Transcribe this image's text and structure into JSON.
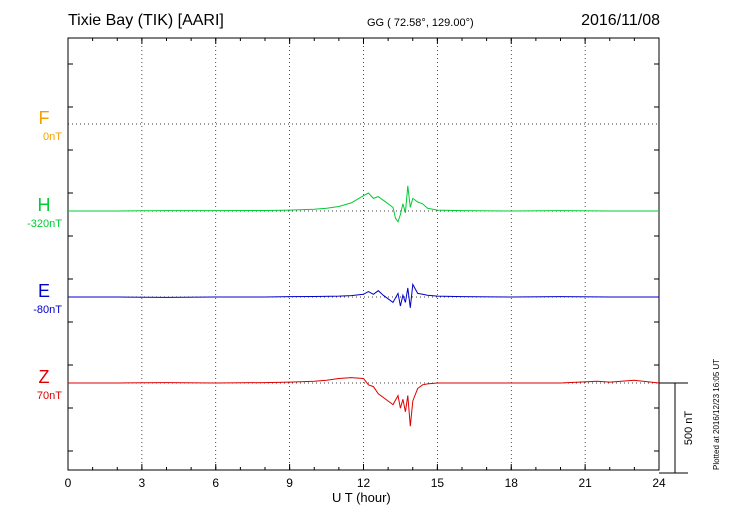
{
  "header": {
    "title": "Tixie Bay (TIK)  [AARI]",
    "coords": "GG ( 72.58°, 129.00°)",
    "date": "2016/11/08"
  },
  "footer": {
    "plotted": "Plotted at 2016/12/23 16:05 UT"
  },
  "colors": {
    "F": "#f5a000",
    "H": "#00cc33",
    "E": "#0000cc",
    "Z": "#dd0000"
  },
  "chart_data": {
    "type": "line",
    "xlabel": "U T (hour)",
    "xlim": [
      0,
      24
    ],
    "xticks": [
      0,
      3,
      6,
      9,
      12,
      15,
      18,
      21,
      24
    ],
    "grid": true,
    "scale_bar": {
      "label": "500 nT",
      "value_nT": 500
    },
    "series": [
      {
        "name": "F",
        "baseline_label": "0nT",
        "baseline_nT": 0,
        "x": [],
        "y": []
      },
      {
        "name": "H",
        "baseline_label": "-320nT",
        "baseline_nT": -320,
        "x": [
          0,
          2,
          4,
          6,
          8,
          9,
          10,
          10.5,
          11,
          11.5,
          12,
          12.2,
          12.4,
          12.6,
          12.8,
          13,
          13.2,
          13.3,
          13.4,
          13.5,
          13.6,
          13.7,
          13.8,
          13.9,
          14,
          14.2,
          14.4,
          14.6,
          15,
          16,
          18,
          20,
          22,
          24
        ],
        "y": [
          0,
          0,
          2,
          2,
          3,
          5,
          10,
          15,
          25,
          45,
          85,
          100,
          70,
          80,
          60,
          40,
          20,
          -40,
          -60,
          -20,
          40,
          -10,
          140,
          20,
          70,
          50,
          40,
          15,
          5,
          2,
          0,
          2,
          0,
          0
        ]
      },
      {
        "name": "E",
        "baseline_label": "-80nT",
        "baseline_nT": -80,
        "x": [
          0,
          2,
          4,
          6,
          8,
          9,
          10,
          11,
          11.5,
          12,
          12.2,
          12.4,
          12.6,
          12.8,
          13,
          13.2,
          13.4,
          13.5,
          13.6,
          13.7,
          13.8,
          13.9,
          14,
          14.2,
          14.4,
          14.6,
          15,
          16,
          18,
          20,
          22,
          24
        ],
        "y": [
          0,
          0,
          -2,
          0,
          0,
          2,
          3,
          5,
          8,
          15,
          30,
          15,
          35,
          10,
          -10,
          -30,
          20,
          -50,
          10,
          -30,
          50,
          -60,
          70,
          20,
          15,
          10,
          5,
          2,
          0,
          2,
          0,
          0
        ]
      },
      {
        "name": "Z",
        "baseline_label": "70nT",
        "baseline_nT": 70,
        "x": [
          0,
          2,
          4,
          6,
          8,
          9,
          10,
          10.5,
          11,
          11.5,
          12,
          12.2,
          12.4,
          12.6,
          12.8,
          13,
          13.2,
          13.4,
          13.5,
          13.6,
          13.7,
          13.8,
          13.9,
          14,
          14.2,
          14.4,
          14.6,
          15,
          16,
          18,
          20,
          21.5,
          22,
          23,
          24
        ],
        "y": [
          0,
          0,
          2,
          0,
          2,
          5,
          10,
          15,
          25,
          30,
          25,
          -10,
          -20,
          -60,
          -80,
          -100,
          -120,
          -70,
          -140,
          -90,
          -160,
          -70,
          -240,
          -100,
          -30,
          -10,
          -5,
          0,
          0,
          0,
          0,
          10,
          5,
          15,
          0
        ]
      }
    ]
  }
}
